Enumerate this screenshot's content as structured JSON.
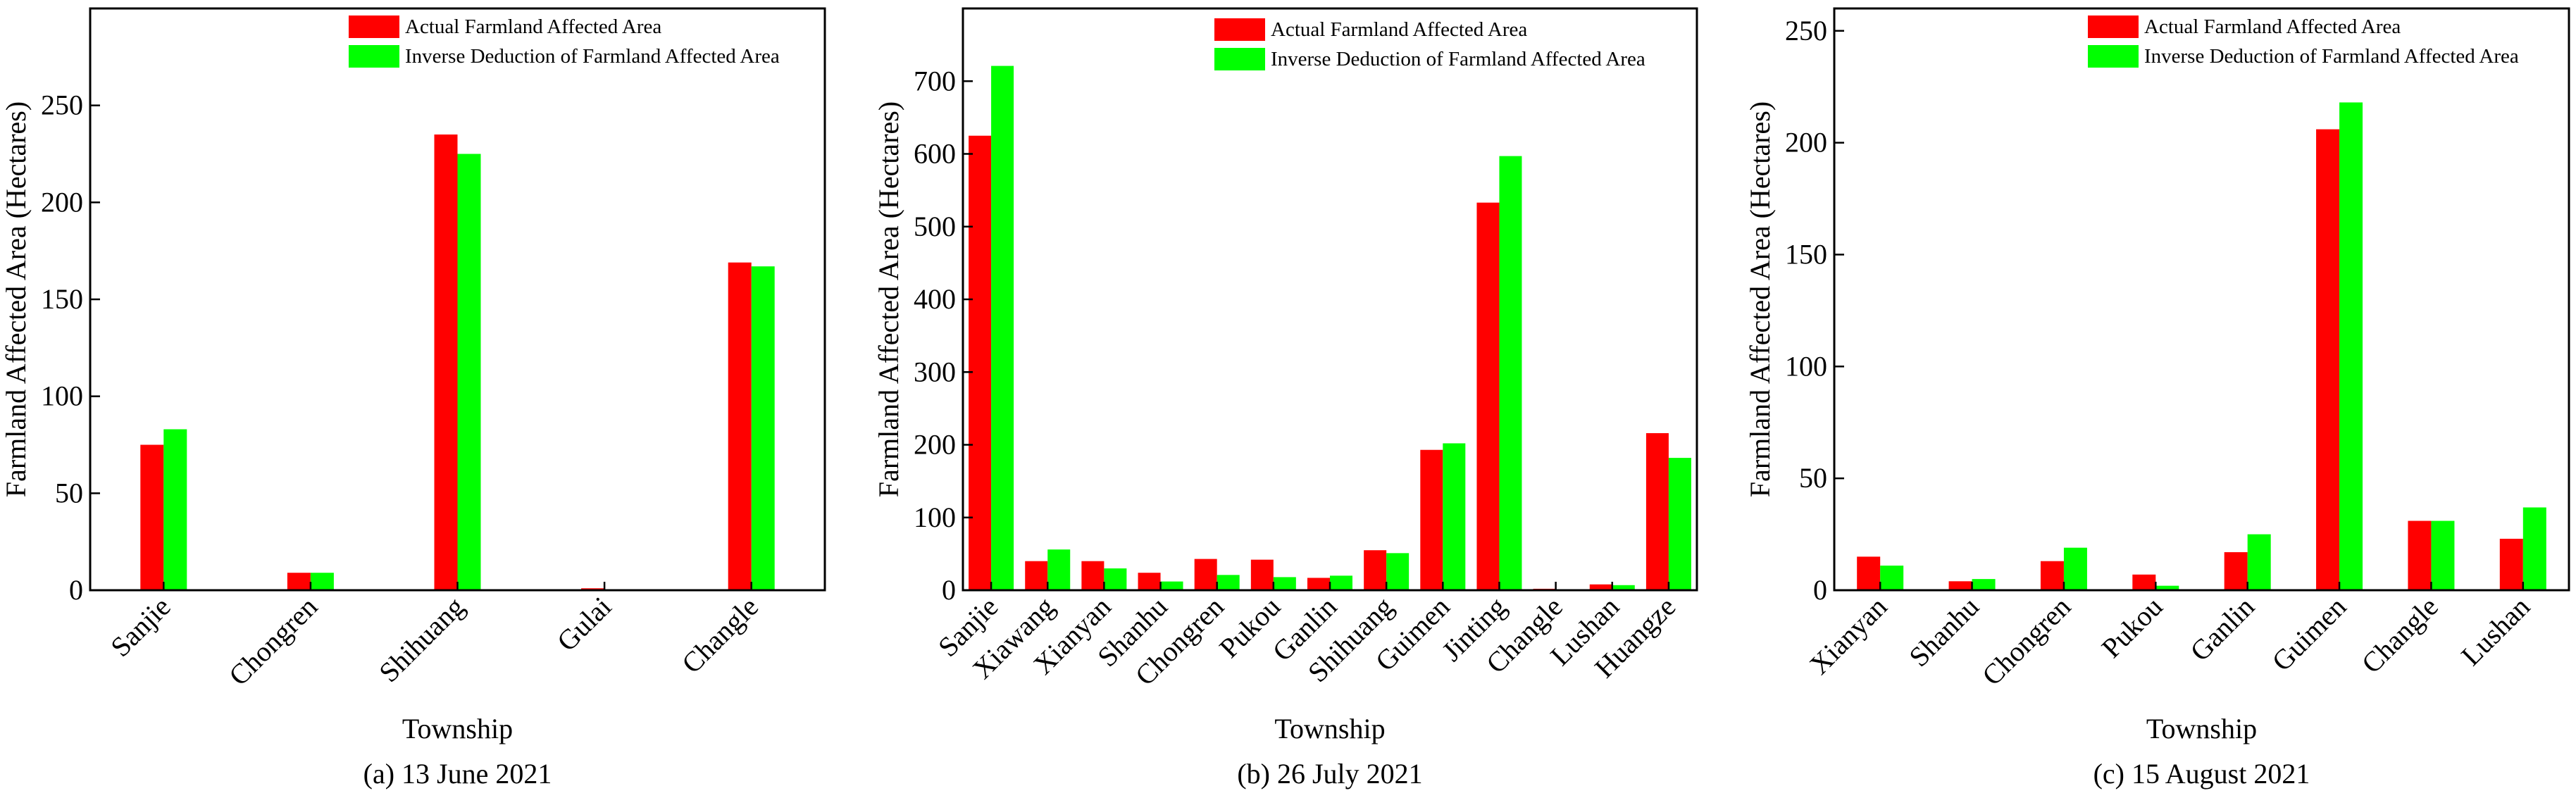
{
  "colors": {
    "actual": "#ff0000",
    "inverse": "#00ff00"
  },
  "chart_data": [
    {
      "type": "bar",
      "caption": "(a) 13 June 2021",
      "xlabel": "Township",
      "ylabel": "Farmland Affected Area (Hectares)",
      "ylim": [
        0,
        300
      ],
      "yticks": [
        0,
        50,
        100,
        150,
        200,
        250
      ],
      "legend_position": "top-right",
      "categories": [
        "Sanjie",
        "Chongren",
        "Shihuang",
        "Gulai",
        "Changle"
      ],
      "series": [
        {
          "name": "Actual Farmland Affected Area",
          "values": [
            75,
            9,
            235,
            1,
            169
          ]
        },
        {
          "name": "Inverse Deduction of Farmland Affected Area",
          "values": [
            83,
            9,
            225,
            0.5,
            167
          ]
        }
      ]
    },
    {
      "type": "bar",
      "caption": "(b) 26 July 2021",
      "xlabel": "Township",
      "ylabel": "Farmland Affected Area (Hectares)",
      "ylim": [
        0,
        800
      ],
      "yticks": [
        0,
        100,
        200,
        300,
        400,
        500,
        600,
        700
      ],
      "legend_position": "top-right",
      "categories": [
        "Sanjie",
        "Xiawang",
        "Xianyan",
        "Shanhu",
        "Chongren",
        "Pukou",
        "Ganlin",
        "Shihuang",
        "Guimen",
        "Jinting",
        "Changle",
        "Lushan",
        "Huangze"
      ],
      "series": [
        {
          "name": "Actual Farmland Affected Area",
          "values": [
            625,
            40,
            40,
            24,
            43,
            42,
            17,
            55,
            193,
            533,
            2,
            8,
            216
          ]
        },
        {
          "name": "Inverse Deduction of Farmland Affected Area",
          "values": [
            721,
            56,
            30,
            12,
            21,
            18,
            20,
            51,
            202,
            597,
            1,
            7,
            182
          ]
        }
      ]
    },
    {
      "type": "bar",
      "caption": "(c) 15 August 2021",
      "xlabel": "Township",
      "ylabel": "Farmland Affected Area (Hectares)",
      "ylim": [
        0,
        260
      ],
      "yticks": [
        0,
        50,
        100,
        150,
        200,
        250
      ],
      "legend_position": "top-right",
      "categories": [
        "Xianyan",
        "Shanhu",
        "Chongren",
        "Pukou",
        "Ganlin",
        "Guimen",
        "Changle",
        "Lushan"
      ],
      "series": [
        {
          "name": "Actual Farmland Affected Area",
          "values": [
            15,
            4,
            13,
            7,
            17,
            206,
            31,
            23
          ]
        },
        {
          "name": "Inverse Deduction of Farmland Affected Area",
          "values": [
            11,
            5,
            19,
            2,
            25,
            218,
            31,
            37
          ]
        }
      ]
    }
  ]
}
